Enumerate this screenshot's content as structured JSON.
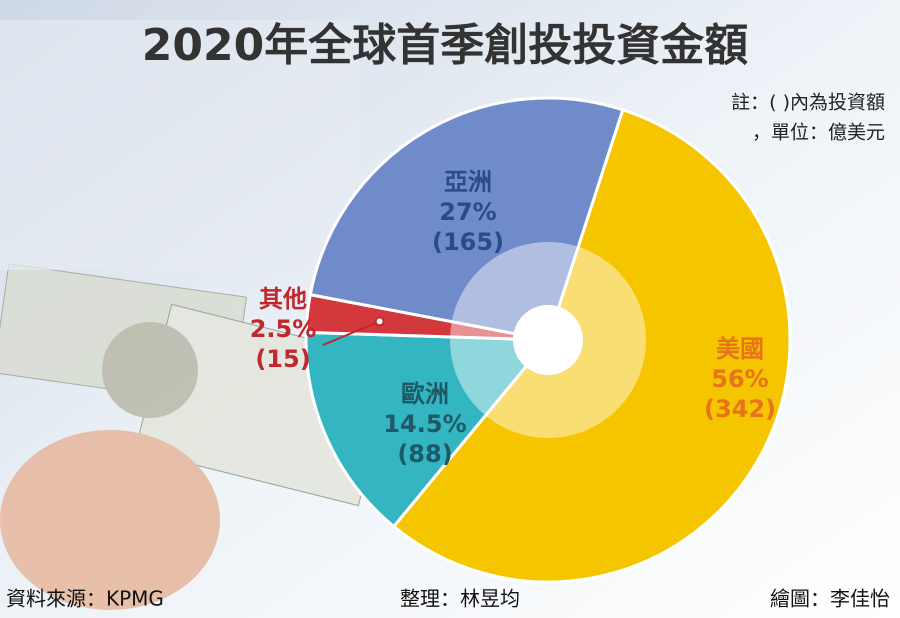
{
  "chart_data": {
    "type": "pie",
    "title": "2020年全球首季創投投資金額",
    "notes": [
      "註：( )內為投資額",
      "，單位：億美元"
    ],
    "categories": [
      "美國",
      "歐洲",
      "其他",
      "亞洲"
    ],
    "values": [
      56,
      14.5,
      2.5,
      27
    ],
    "value_labels": [
      "56%",
      "14.5%",
      "2.5%",
      "27%"
    ],
    "amounts": [
      342,
      88,
      15,
      165
    ],
    "amount_labels": [
      "(342)",
      "(88)",
      "(15)",
      "(165)"
    ],
    "colors": [
      "#f5c500",
      "#33b6c1",
      "#d3383c",
      "#6f8bc9"
    ],
    "label_colors": [
      "#e8741a",
      "#1f5866",
      "#c0282e",
      "#2b4a8c"
    ],
    "source": "資料來源：KPMG",
    "editor": "整理：林昱均",
    "artist": "繪圖：李佳怡"
  }
}
